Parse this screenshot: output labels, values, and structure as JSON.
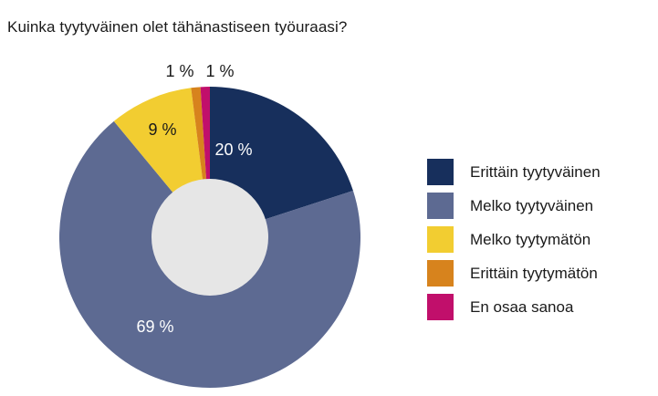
{
  "chart_data": {
    "type": "pie",
    "title": "Kuinka tyytyväinen olet tähänastiseen työuraasi?",
    "donut": true,
    "legend_position": "right",
    "slices": [
      {
        "name": "Erittäin tyytyväinen",
        "value": 20,
        "label": "20 %",
        "color": "#172f5c"
      },
      {
        "name": "Melko tyytyväinen",
        "value": 69,
        "label": "69 %",
        "color": "#5d6a92"
      },
      {
        "name": "Melko tyytymätön",
        "value": 9,
        "label": "9 %",
        "color": "#f2cd31"
      },
      {
        "name": "Erittäin tyytymätön",
        "value": 1,
        "label": "1 %",
        "color": "#d7831d"
      },
      {
        "name": "En osaa sanoa",
        "value": 1,
        "label": "1 %",
        "color": "#c10f6b"
      }
    ],
    "hole_color": "#e6e6e6"
  }
}
